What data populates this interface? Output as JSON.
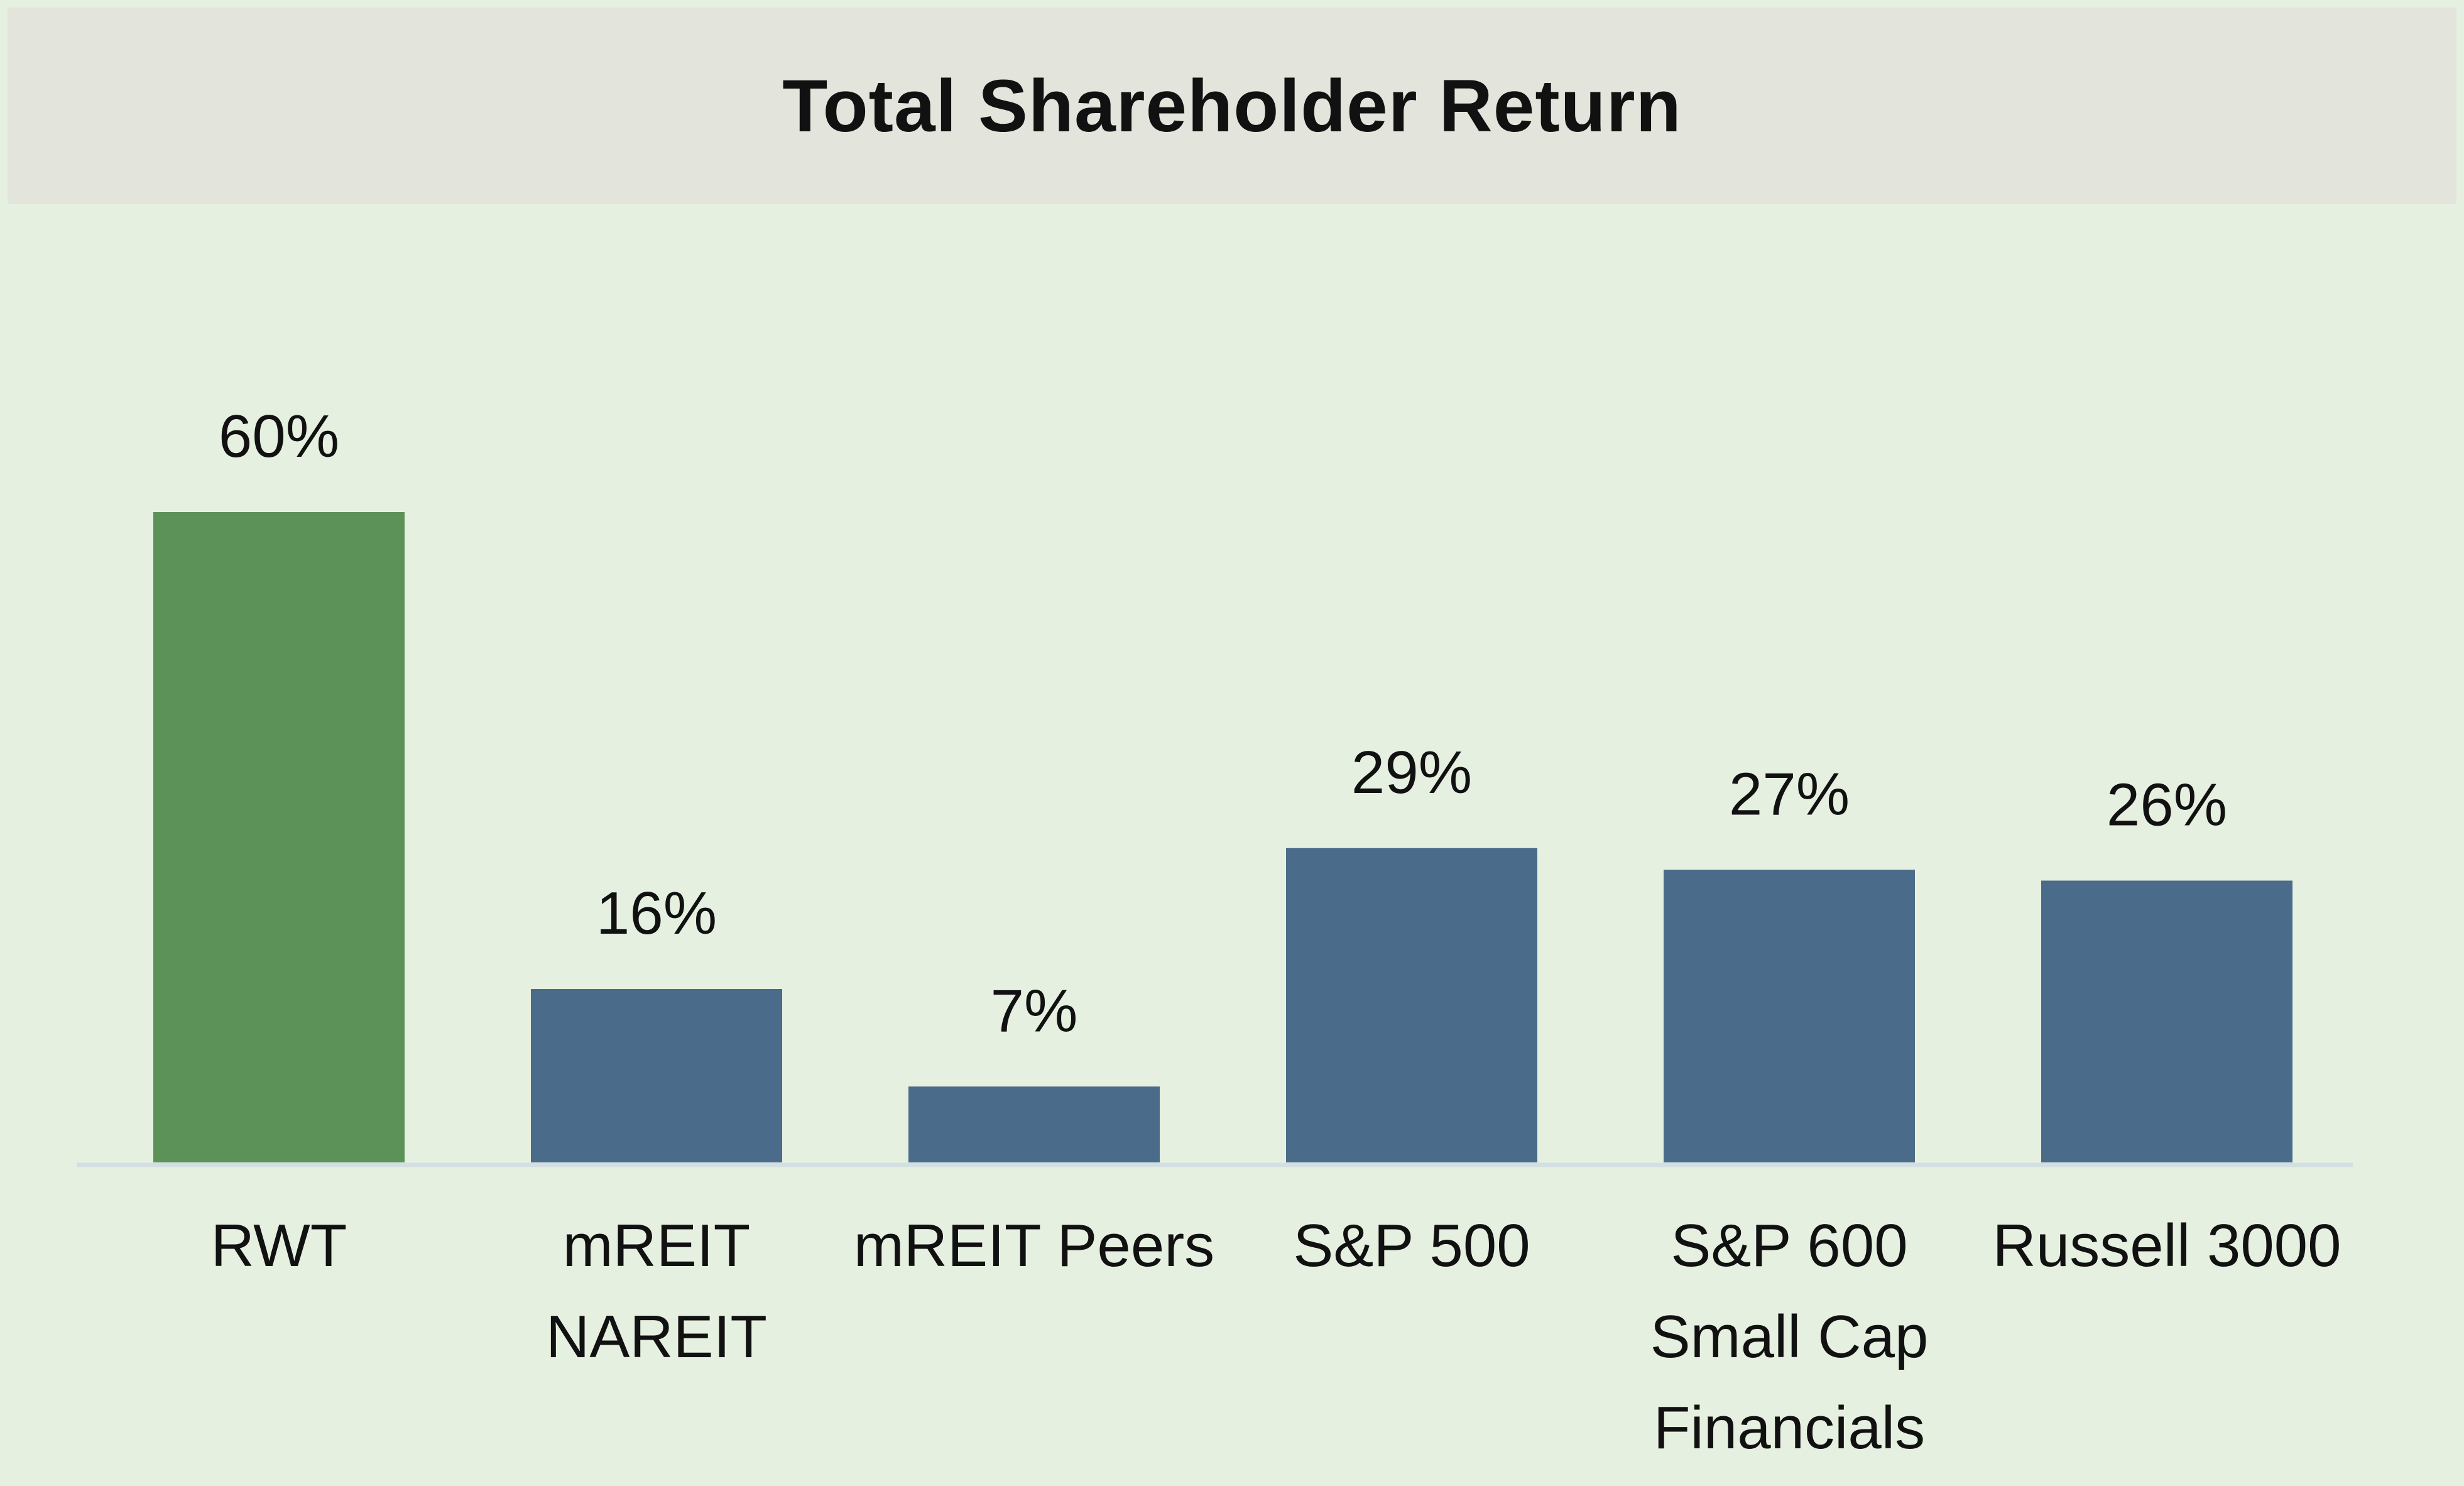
{
  "chart_data": {
    "type": "bar",
    "title": "Total Shareholder Return",
    "xlabel": "",
    "ylabel": "",
    "ylim": [
      0,
      60
    ],
    "grid": false,
    "categories": [
      [
        "RWT"
      ],
      [
        "mREIT",
        "NAREIT"
      ],
      [
        "mREIT Peers"
      ],
      [
        "S&P 500"
      ],
      [
        "S&P 600",
        "Small Cap",
        "Financials"
      ],
      [
        "Russell 3000"
      ]
    ],
    "values": [
      60,
      16,
      7,
      29,
      27,
      26
    ],
    "value_labels": [
      "60%",
      "16%",
      "7%",
      "29%",
      "27%",
      "26%"
    ],
    "colors": {
      "highlight": "#5c9157",
      "default": "#4a6b8a",
      "axis": "#d3dfe3"
    },
    "highlight_index": 0
  }
}
